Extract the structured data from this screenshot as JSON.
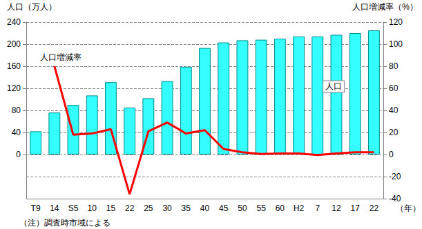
{
  "chart_data": {
    "type": "bar",
    "ylabel": "人口（万人）",
    "y2label": "人口増減率（%）",
    "xlabel": "（年）",
    "note": "（注）調査時市域による",
    "categories": [
      "T9",
      "14",
      "S5",
      "10",
      "15",
      "22",
      "25",
      "30",
      "35",
      "40",
      "45",
      "50",
      "55",
      "60",
      "H2",
      "7",
      "12",
      "17",
      "22"
    ],
    "series": [
      {
        "name": "人口",
        "type": "bar",
        "color": "#33ffff",
        "values": [
          42,
          76,
          90,
          107,
          131,
          85,
          102,
          133,
          159,
          193,
          203,
          207,
          208,
          210,
          214,
          214,
          217,
          220,
          225
        ]
      },
      {
        "name": "人口増減率",
        "type": "line",
        "color": "#ff0000",
        "axis": "y2",
        "values": [
          null,
          80,
          18,
          19,
          23,
          -36,
          21,
          29,
          19,
          22,
          5,
          2,
          0.5,
          1,
          1,
          -0.5,
          1,
          2,
          2
        ]
      }
    ],
    "ylim": [
      -80,
      240
    ],
    "yticks": [
      0,
      40,
      80,
      120,
      160,
      200,
      240
    ],
    "y2lim": [
      -40,
      120
    ],
    "y2ticks": [
      -40,
      -20,
      0,
      20,
      40,
      60,
      80,
      100,
      120
    ],
    "grid": true
  }
}
